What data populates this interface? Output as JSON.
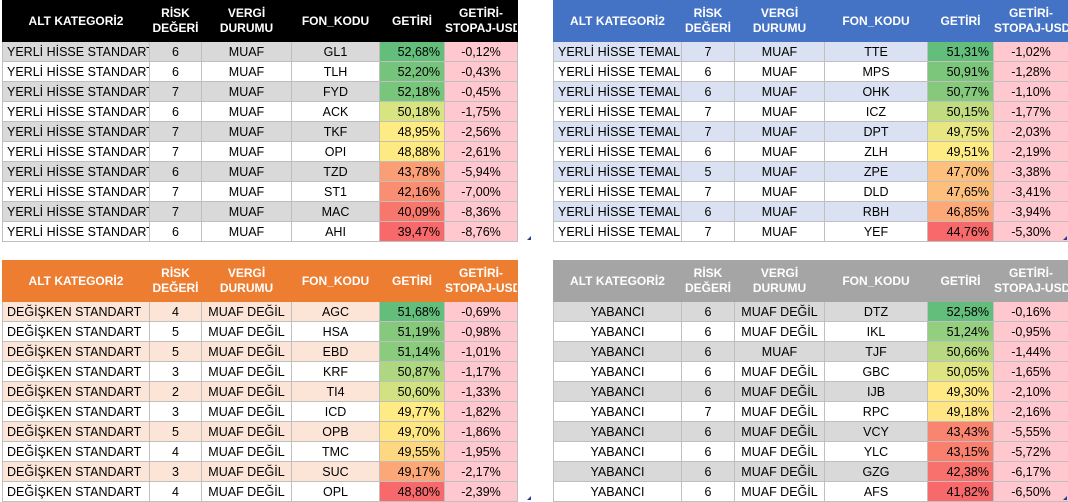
{
  "headers": [
    "ALT KATEGORİ2",
    "RİSK DEĞERİ",
    "VERGİ DURUMU",
    "FON_KODU",
    "GETİRİ",
    "GETİRİ-STOPAJ-USD"
  ],
  "header_lines": {
    "risk": [
      "RİSK",
      "DEĞERİ"
    ],
    "vergi": [
      "VERGİ",
      "DURUMU"
    ],
    "usd": [
      "GETİRİ-",
      "STOPAJ-USD"
    ]
  },
  "colors": {
    "header_black": "#000000",
    "header_blue": "#4472c4",
    "header_orange": "#ed7d31",
    "header_gray": "#a5a5a5",
    "row_gray": "#d9d9d9",
    "row_blue": "#d9e1f2",
    "row_orange": "#fce4d6",
    "negative_fill": "#ffc7ce"
  },
  "tables": [
    {
      "name": "yerli-hisse-standart",
      "rows": [
        {
          "kat": "YERLİ HİSSE STANDART",
          "risk": "6",
          "vergi": "MUAF",
          "kod": "GL1",
          "getiri": "52,68%",
          "usd": "-0,12%",
          "getiri_color": "#63be7b"
        },
        {
          "kat": "YERLİ HİSSE STANDART",
          "risk": "6",
          "vergi": "MUAF",
          "kod": "TLH",
          "getiri": "52,20%",
          "usd": "-0,43%",
          "getiri_color": "#76c47c"
        },
        {
          "kat": "YERLİ HİSSE STANDART",
          "risk": "7",
          "vergi": "MUAF",
          "kod": "FYD",
          "getiri": "52,18%",
          "usd": "-0,45%",
          "getiri_color": "#78c57c"
        },
        {
          "kat": "YERLİ HİSSE STANDART",
          "risk": "6",
          "vergi": "MUAF",
          "kod": "ACK",
          "getiri": "50,18%",
          "usd": "-1,75%",
          "getiri_color": "#d8e382"
        },
        {
          "kat": "YERLİ HİSSE STANDART",
          "risk": "7",
          "vergi": "MUAF",
          "kod": "TKF",
          "getiri": "48,95%",
          "usd": "-2,56%",
          "getiri_color": "#ffeb84"
        },
        {
          "kat": "YERLİ HİSSE STANDART",
          "risk": "7",
          "vergi": "MUAF",
          "kod": "OPI",
          "getiri": "48,88%",
          "usd": "-2,61%",
          "getiri_color": "#ffe983"
        },
        {
          "kat": "YERLİ HİSSE STANDART",
          "risk": "6",
          "vergi": "MUAF",
          "kod": "TZD",
          "getiri": "43,78%",
          "usd": "-5,94%",
          "getiri_color": "#fb9d75"
        },
        {
          "kat": "YERLİ HİSSE STANDART",
          "risk": "7",
          "vergi": "MUAF",
          "kod": "ST1",
          "getiri": "42,16%",
          "usd": "-7,00%",
          "getiri_color": "#fa8e72"
        },
        {
          "kat": "YERLİ HİSSE STANDART",
          "risk": "7",
          "vergi": "MUAF",
          "kod": "MAC",
          "getiri": "40,09%",
          "usd": "-8,36%",
          "getiri_color": "#f8776d"
        },
        {
          "kat": "YERLİ HİSSE STANDART",
          "risk": "6",
          "vergi": "MUAF",
          "kod": "AHI",
          "getiri": "39,47%",
          "usd": "-8,76%",
          "getiri_color": "#f8696b"
        }
      ]
    },
    {
      "name": "yerli-hisse-temali",
      "rows": [
        {
          "kat": "YERLİ HİSSE TEMALI",
          "risk": "7",
          "vergi": "MUAF",
          "kod": "TTE",
          "getiri": "51,31%",
          "usd": "-1,02%",
          "getiri_color": "#63be7b"
        },
        {
          "kat": "YERLİ HİSSE TEMALI",
          "risk": "6",
          "vergi": "MUAF",
          "kod": "MPS",
          "getiri": "50,91%",
          "usd": "-1,28%",
          "getiri_color": "#7cc67c"
        },
        {
          "kat": "YERLİ HİSSE TEMALI",
          "risk": "6",
          "vergi": "MUAF",
          "kod": "OHK",
          "getiri": "50,77%",
          "usd": "-1,10%",
          "getiri_color": "#86c97d"
        },
        {
          "kat": "YERLİ HİSSE TEMALI",
          "risk": "7",
          "vergi": "MUAF",
          "kod": "ICZ",
          "getiri": "50,15%",
          "usd": "-1,77%",
          "getiri_color": "#c1dc80"
        },
        {
          "kat": "YERLİ HİSSE TEMALI",
          "risk": "7",
          "vergi": "MUAF",
          "kod": "DPT",
          "getiri": "49,75%",
          "usd": "-2,03%",
          "getiri_color": "#e7e683"
        },
        {
          "kat": "YERLİ HİSSE TEMALI",
          "risk": "6",
          "vergi": "MUAF",
          "kod": "ZLH",
          "getiri": "49,51%",
          "usd": "-2,19%",
          "getiri_color": "#ffeb84"
        },
        {
          "kat": "YERLİ HİSSE TEMALI",
          "risk": "5",
          "vergi": "MUAF",
          "kod": "ZPE",
          "getiri": "47,70%",
          "usd": "-3,38%",
          "getiri_color": "#fdc07c"
        },
        {
          "kat": "YERLİ HİSSE TEMALI",
          "risk": "7",
          "vergi": "MUAF",
          "kod": "DLD",
          "getiri": "47,65%",
          "usd": "-3,41%",
          "getiri_color": "#fdbf7c"
        },
        {
          "kat": "YERLİ HİSSE TEMALI",
          "risk": "6",
          "vergi": "MUAF",
          "kod": "RBH",
          "getiri": "46,85%",
          "usd": "-3,94%",
          "getiri_color": "#fca877"
        },
        {
          "kat": "YERLİ HİSSE TEMALI",
          "risk": "7",
          "vergi": "MUAF",
          "kod": "YEF",
          "getiri": "44,76%",
          "usd": "-5,30%",
          "getiri_color": "#f8696b"
        }
      ]
    },
    {
      "name": "degisken-standart",
      "rows": [
        {
          "kat": "DEĞİŞKEN STANDART",
          "risk": "4",
          "vergi": "MUAF DEĞİL",
          "kod": "AGC",
          "getiri": "51,68%",
          "usd": "-0,69%",
          "getiri_color": "#63be7b"
        },
        {
          "kat": "DEĞİŞKEN STANDART",
          "risk": "5",
          "vergi": "MUAF DEĞİL",
          "kod": "HSA",
          "getiri": "51,19%",
          "usd": "-0,98%",
          "getiri_color": "#86c97d"
        },
        {
          "kat": "DEĞİŞKEN STANDART",
          "risk": "5",
          "vergi": "MUAF DEĞİL",
          "kod": "EBD",
          "getiri": "51,14%",
          "usd": "-1,01%",
          "getiri_color": "#8acb7e"
        },
        {
          "kat": "DEĞİŞKEN STANDART",
          "risk": "3",
          "vergi": "MUAF DEĞİL",
          "kod": "KRF",
          "getiri": "50,87%",
          "usd": "-1,17%",
          "getiri_color": "#afd680"
        },
        {
          "kat": "DEĞİŞKEN STANDART",
          "risk": "2",
          "vergi": "MUAF DEĞİL",
          "kod": "TI4",
          "getiri": "50,60%",
          "usd": "-1,33%",
          "getiri_color": "#d2e182"
        },
        {
          "kat": "DEĞİŞKEN STANDART",
          "risk": "3",
          "vergi": "MUAF DEĞİL",
          "kod": "ICD",
          "getiri": "49,77%",
          "usd": "-1,82%",
          "getiri_color": "#ffeb84"
        },
        {
          "kat": "DEĞİŞKEN STANDART",
          "risk": "5",
          "vergi": "MUAF DEĞİL",
          "kod": "OPB",
          "getiri": "49,70%",
          "usd": "-1,86%",
          "getiri_color": "#fee683"
        },
        {
          "kat": "DEĞİŞKEN STANDART",
          "risk": "4",
          "vergi": "MUAF DEĞİL",
          "kod": "TMC",
          "getiri": "49,55%",
          "usd": "-1,95%",
          "getiri_color": "#fed880"
        },
        {
          "kat": "DEĞİŞKEN STANDART",
          "risk": "3",
          "vergi": "MUAF DEĞİL",
          "kod": "SUC",
          "getiri": "49,17%",
          "usd": "-2,17%",
          "getiri_color": "#fca777"
        },
        {
          "kat": "DEĞİŞKEN STANDART",
          "risk": "4",
          "vergi": "MUAF DEĞİL",
          "kod": "OPL",
          "getiri": "48,80%",
          "usd": "-2,39%",
          "getiri_color": "#f8696b"
        }
      ]
    },
    {
      "name": "yabanci",
      "rows": [
        {
          "kat": "YABANCI",
          "risk": "6",
          "vergi": "MUAF DEĞİL",
          "kod": "DTZ",
          "getiri": "52,58%",
          "usd": "-0,16%",
          "getiri_color": "#63be7b"
        },
        {
          "kat": "YABANCI",
          "risk": "6",
          "vergi": "MUAF DEĞİL",
          "kod": "IKL",
          "getiri": "51,24%",
          "usd": "-0,95%",
          "getiri_color": "#94ce7f"
        },
        {
          "kat": "YABANCI",
          "risk": "6",
          "vergi": "MUAF",
          "kod": "TJF",
          "getiri": "50,66%",
          "usd": "-1,44%",
          "getiri_color": "#b8d981"
        },
        {
          "kat": "YABANCI",
          "risk": "6",
          "vergi": "MUAF DEĞİL",
          "kod": "GBC",
          "getiri": "50,05%",
          "usd": "-1,65%",
          "getiri_color": "#dfe483"
        },
        {
          "kat": "YABANCI",
          "risk": "6",
          "vergi": "MUAF DEĞİL",
          "kod": "IJB",
          "getiri": "49,30%",
          "usd": "-2,10%",
          "getiri_color": "#ffe984"
        },
        {
          "kat": "YABANCI",
          "risk": "7",
          "vergi": "MUAF DEĞİL",
          "kod": "RPC",
          "getiri": "49,18%",
          "usd": "-2,16%",
          "getiri_color": "#ffe583"
        },
        {
          "kat": "YABANCI",
          "risk": "6",
          "vergi": "MUAF DEĞİL",
          "kod": "VCY",
          "getiri": "43,43%",
          "usd": "-5,55%",
          "getiri_color": "#f98570"
        },
        {
          "kat": "YABANCI",
          "risk": "6",
          "vergi": "MUAF DEĞİL",
          "kod": "YLC",
          "getiri": "43,15%",
          "usd": "-5,72%",
          "getiri_color": "#f97f6f"
        },
        {
          "kat": "YABANCI",
          "risk": "6",
          "vergi": "MUAF DEĞİL",
          "kod": "GZG",
          "getiri": "42,38%",
          "usd": "-6,17%",
          "getiri_color": "#f8716d"
        },
        {
          "kat": "YABANCI",
          "risk": "6",
          "vergi": "MUAF DEĞİL",
          "kod": "AFS",
          "getiri": "41,82%",
          "usd": "-6,50%",
          "getiri_color": "#f8696b"
        }
      ]
    }
  ]
}
